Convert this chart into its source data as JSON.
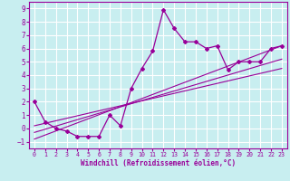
{
  "xlabel": "Windchill (Refroidissement éolien,°C)",
  "bg_color": "#c8eef0",
  "grid_color": "#ffffff",
  "line_color": "#990099",
  "xlim": [
    -0.5,
    23.5
  ],
  "ylim": [
    -1.5,
    9.5
  ],
  "xticks": [
    0,
    1,
    2,
    3,
    4,
    5,
    6,
    7,
    8,
    9,
    10,
    11,
    12,
    13,
    14,
    15,
    16,
    17,
    18,
    19,
    20,
    21,
    22,
    23
  ],
  "yticks": [
    -1,
    0,
    1,
    2,
    3,
    4,
    5,
    6,
    7,
    8,
    9
  ],
  "main_series": {
    "x": [
      0,
      1,
      2,
      3,
      4,
      5,
      6,
      7,
      8,
      9,
      10,
      11,
      12,
      13,
      14,
      15,
      16,
      17,
      18,
      19,
      20,
      21,
      22,
      23
    ],
    "y": [
      2.0,
      0.5,
      0.0,
      -0.2,
      -0.6,
      -0.6,
      -0.6,
      1.0,
      0.2,
      3.0,
      4.5,
      5.8,
      8.9,
      7.5,
      6.5,
      6.5,
      6.0,
      6.2,
      4.4,
      5.0,
      5.0,
      5.0,
      6.0,
      6.2
    ]
  },
  "regression_lines": [
    {
      "x": [
        0,
        23
      ],
      "y": [
        -0.8,
        6.2
      ]
    },
    {
      "x": [
        0,
        23
      ],
      "y": [
        -0.3,
        5.2
      ]
    },
    {
      "x": [
        0,
        23
      ],
      "y": [
        0.2,
        4.5
      ]
    }
  ]
}
